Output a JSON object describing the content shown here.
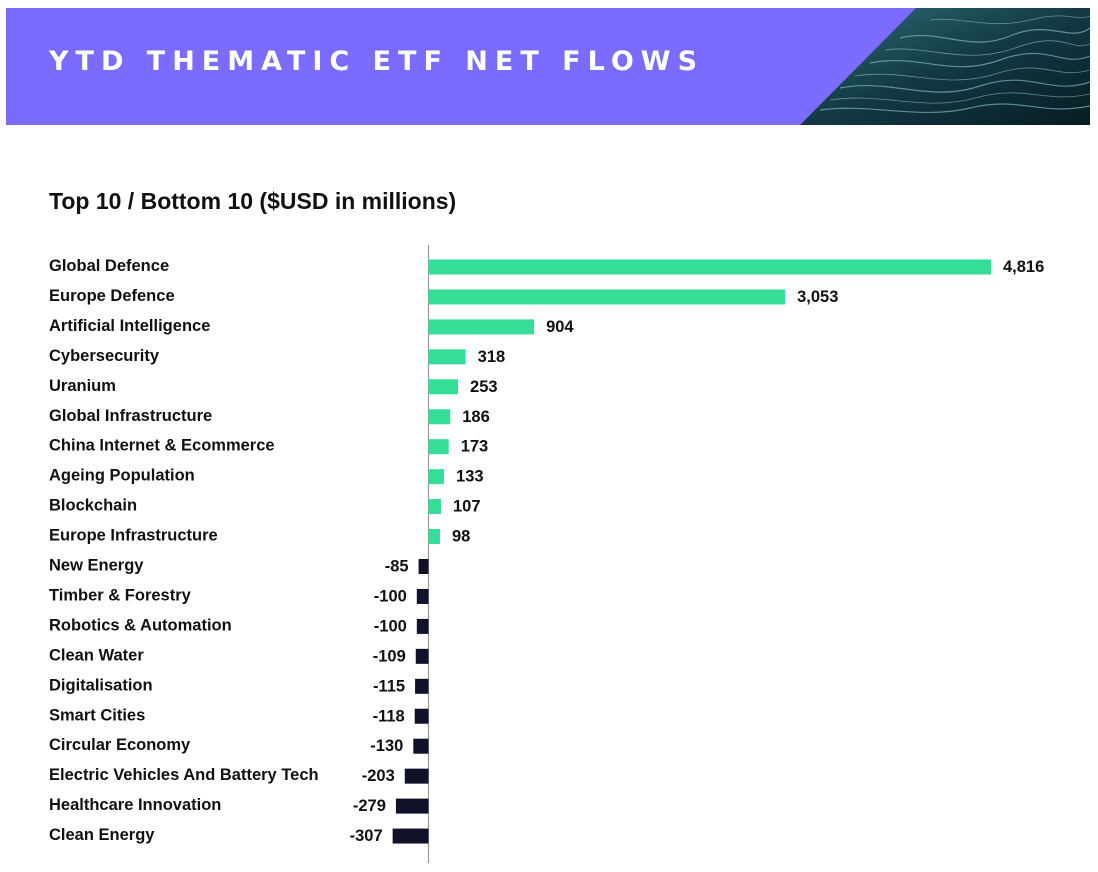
{
  "header": {
    "title": "YTD THEMATIC ETF NET FLOWS"
  },
  "colors": {
    "banner": "#7b6cff",
    "positive": "#35de97",
    "negative": "#12112a",
    "axis": "#999999"
  },
  "chart_data": {
    "type": "bar",
    "orientation": "horizontal",
    "title": "Top 10 / Bottom 10 ($USD in millions)",
    "xlabel": "",
    "ylabel": "",
    "xlim": [
      -307,
      4816
    ],
    "grid": false,
    "categories": [
      "Global Defence",
      "Europe Defence",
      "Artificial Intelligence",
      "Cybersecurity",
      "Uranium",
      "Global Infrastructure",
      "China Internet & Ecommerce",
      "Ageing Population",
      "Blockchain",
      "Europe Infrastructure",
      "New Energy",
      "Timber & Forestry",
      "Robotics & Automation",
      "Clean Water",
      "Digitalisation",
      "Smart Cities",
      "Circular Economy",
      "Electric Vehicles And Battery Tech",
      "Healthcare Innovation",
      "Clean Energy"
    ],
    "values": [
      4816,
      3053,
      904,
      318,
      253,
      186,
      173,
      133,
      107,
      98,
      -85,
      -100,
      -100,
      -109,
      -115,
      -118,
      -130,
      -203,
      -279,
      -307
    ],
    "value_labels": [
      "4,816",
      "3,053",
      "904",
      "318",
      "253",
      "186",
      "173",
      "133",
      "107",
      "98",
      "-85",
      "-100",
      "-100",
      "-109",
      "-115",
      "-118",
      "-130",
      "-203",
      "-279",
      "-307"
    ]
  }
}
